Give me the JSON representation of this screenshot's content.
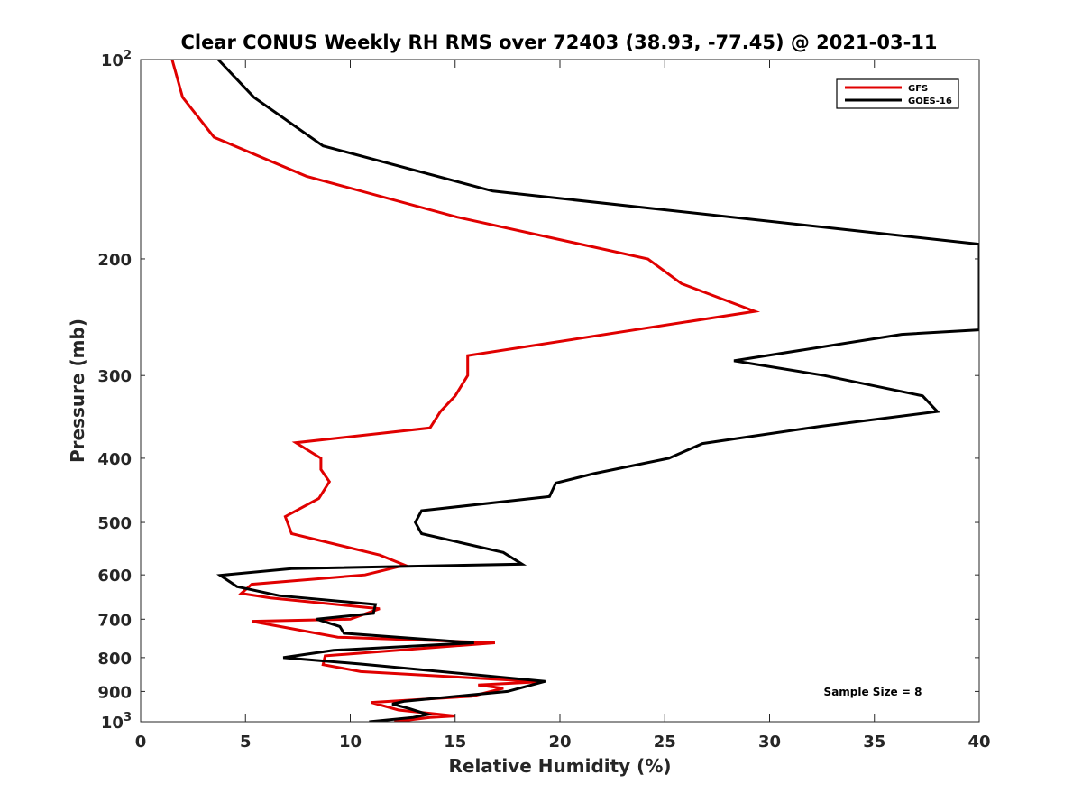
{
  "chart_data": {
    "type": "line",
    "title": "Clear CONUS Weekly RH RMS over 72403 (38.93, -77.45) @ 2021-03-11",
    "xlabel": "Relative Humidity (%)",
    "ylabel": "Pressure (mb)",
    "xlim": [
      0,
      40
    ],
    "ylim": [
      100,
      1000
    ],
    "y_scale": "log",
    "y_reversed": true,
    "grid": false,
    "legend_position": "top-right",
    "x_ticks": [
      "0",
      "5",
      "10",
      "15",
      "20",
      "25",
      "30",
      "35",
      "40"
    ],
    "y_ticks": [
      {
        "value": 200,
        "label": "200"
      },
      {
        "value": 300,
        "label": "300"
      },
      {
        "value": 400,
        "label": "400"
      },
      {
        "value": 500,
        "label": "500"
      },
      {
        "value": 600,
        "label": "600"
      },
      {
        "value": 700,
        "label": "700"
      },
      {
        "value": 800,
        "label": "800"
      },
      {
        "value": 900,
        "label": "900"
      }
    ],
    "y_edge_labels": {
      "top": {
        "base": "10",
        "exp": "2"
      },
      "bottom": {
        "base": "10",
        "exp": "3"
      }
    },
    "annotation": "Sample Size = 8",
    "series": [
      {
        "name": "GFS",
        "color": "#e00000",
        "points": [
          [
            1.5,
            100
          ],
          [
            2.0,
            114
          ],
          [
            3.5,
            131
          ],
          [
            7.9,
            150
          ],
          [
            15.1,
            173
          ],
          [
            24.2,
            200
          ],
          [
            25.8,
            218
          ],
          [
            29.3,
            240
          ],
          [
            15.6,
            280
          ],
          [
            15.6,
            300
          ],
          [
            15.0,
            322
          ],
          [
            14.3,
            340
          ],
          [
            13.8,
            360
          ],
          [
            7.4,
            379
          ],
          [
            8.6,
            400
          ],
          [
            8.6,
            416
          ],
          [
            9.0,
            434
          ],
          [
            8.5,
            460
          ],
          [
            6.9,
            490
          ],
          [
            7.2,
            520
          ],
          [
            11.4,
            560
          ],
          [
            12.6,
            580
          ],
          [
            10.7,
            600
          ],
          [
            5.3,
            620
          ],
          [
            4.8,
            640
          ],
          [
            6.2,
            650
          ],
          [
            11.4,
            675
          ],
          [
            10.0,
            700
          ],
          [
            5.3,
            705
          ],
          [
            9.4,
            745
          ],
          [
            16.9,
            760
          ],
          [
            8.8,
            795
          ],
          [
            8.7,
            820
          ],
          [
            10.5,
            840
          ],
          [
            19.1,
            870
          ],
          [
            16.1,
            880
          ],
          [
            17.3,
            890
          ],
          [
            15.8,
            915
          ],
          [
            11.0,
            935
          ],
          [
            12.3,
            960
          ],
          [
            15.0,
            980
          ],
          [
            13.8,
            985
          ],
          [
            12.1,
            1000
          ]
        ]
      },
      {
        "name": "GOES-16",
        "color": "#000000",
        "points": [
          [
            3.7,
            100
          ],
          [
            5.4,
            114
          ],
          [
            8.7,
            135
          ],
          [
            16.8,
            158
          ],
          [
            40.0,
            190
          ],
          [
            40.0,
            256
          ],
          [
            36.3,
            260
          ],
          [
            28.3,
            285
          ],
          [
            32.6,
            300
          ],
          [
            37.3,
            322
          ],
          [
            38.0,
            340
          ],
          [
            32.4,
            358
          ],
          [
            26.8,
            380
          ],
          [
            25.2,
            400
          ],
          [
            21.6,
            422
          ],
          [
            19.8,
            436
          ],
          [
            19.5,
            457
          ],
          [
            13.4,
            480
          ],
          [
            13.1,
            500
          ],
          [
            13.4,
            520
          ],
          [
            17.3,
            555
          ],
          [
            18.2,
            578
          ],
          [
            7.2,
            587
          ],
          [
            3.8,
            601
          ],
          [
            4.6,
            625
          ],
          [
            6.6,
            645
          ],
          [
            11.2,
            665
          ],
          [
            11.1,
            686
          ],
          [
            8.4,
            700
          ],
          [
            9.5,
            718
          ],
          [
            9.7,
            735
          ],
          [
            15.9,
            760
          ],
          [
            9.2,
            780
          ],
          [
            6.8,
            800
          ],
          [
            10.5,
            818
          ],
          [
            19.3,
            869
          ],
          [
            17.5,
            900
          ],
          [
            12.6,
            931
          ],
          [
            12.0,
            940
          ],
          [
            12.8,
            955
          ],
          [
            13.7,
            975
          ],
          [
            13.0,
            985
          ],
          [
            10.9,
            1000
          ]
        ]
      }
    ]
  }
}
